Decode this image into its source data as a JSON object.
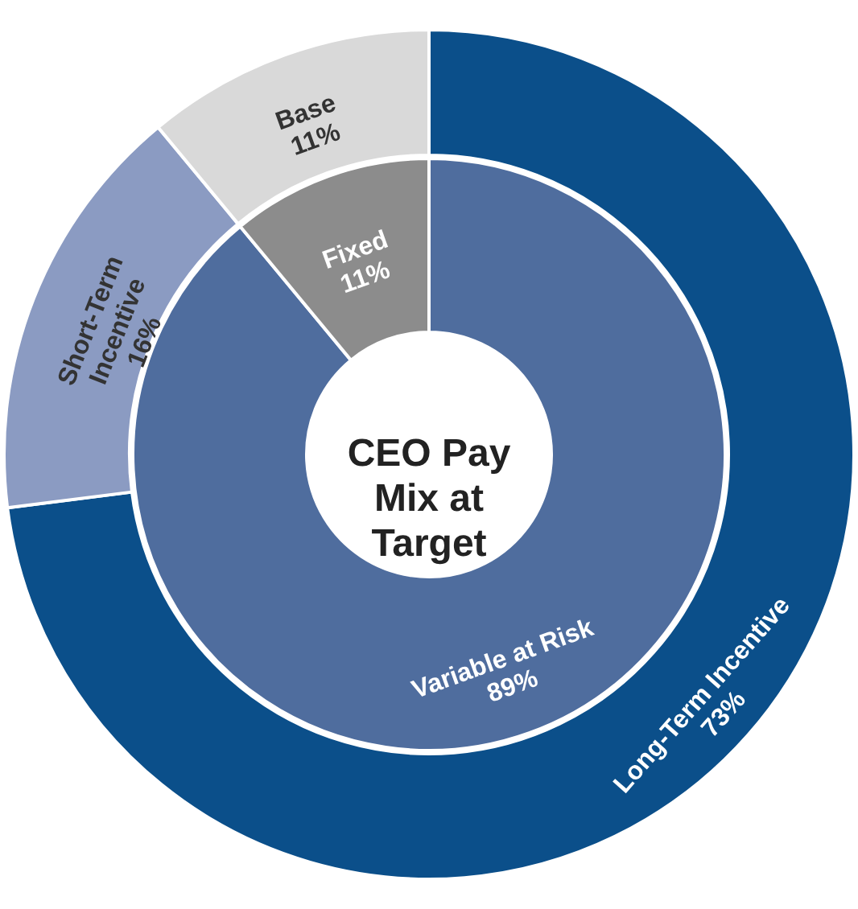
{
  "chart_data": [
    {
      "type": "donut",
      "title": "CEO Pay Mix at Target",
      "categories": [
        "Long-Term Incentive",
        "Short-Term Incentive",
        "Base"
      ],
      "values": [
        73,
        16,
        11
      ],
      "value_labels": [
        "73%",
        "16%",
        "11%"
      ],
      "colors": [
        "#0b4f8a",
        "#8b9bc2",
        "#d9d9d9"
      ]
    },
    {
      "type": "donut",
      "categories": [
        "Variable at Risk",
        "Fixed"
      ],
      "values": [
        89,
        11
      ],
      "value_labels": [
        "89%",
        "11%"
      ],
      "colors": [
        "#4f6d9e",
        "#8c8c8c"
      ]
    }
  ]
}
